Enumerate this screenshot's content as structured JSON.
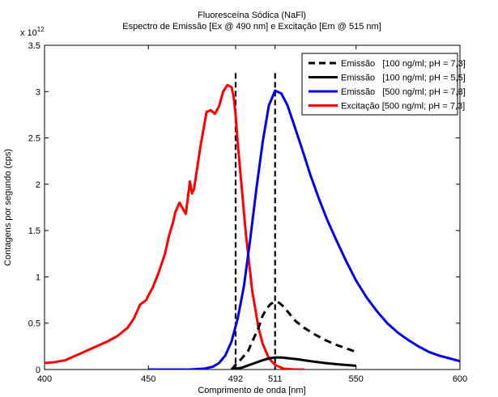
{
  "chart_data": {
    "type": "line",
    "title": "Fluoresceína Sódica (NaFl)",
    "subtitle": "Espectro de Emissão [Ex @ 490 nm] e Excitação [Em @ 515 nm]",
    "xlabel": "Comprimento de onda [nm]",
    "ylabel": "Contagens por segundo (cps)",
    "y_multiplier_label": "x 10",
    "y_multiplier_exponent": "12",
    "xlim": [
      400,
      600
    ],
    "ylim": [
      0,
      3.5
    ],
    "x_ticks": [
      400,
      450,
      492,
      511,
      550,
      600
    ],
    "x_tick_labels": [
      "400",
      "450",
      "492",
      "511",
      "550",
      "600"
    ],
    "y_ticks": [
      0,
      0.5,
      1,
      1.5,
      2,
      2.5,
      3,
      3.5
    ],
    "y_tick_labels": [
      "0",
      "0.5",
      "1",
      "1.5",
      "2",
      "2.5",
      "3",
      "3.5"
    ],
    "grid": false,
    "legend_position": "top-right",
    "reference_lines": [
      {
        "x": 492,
        "style": "dashed",
        "color": "#000000"
      },
      {
        "x": 511,
        "style": "dashed",
        "color": "#000000"
      }
    ],
    "series": [
      {
        "name": "Emissão   [100 ng/ml; pH = 7,3]",
        "color": "#000000",
        "style": "dashed",
        "x": [
          490,
          492,
          495,
          498,
          500,
          503,
          505,
          507,
          509,
          511,
          513,
          515,
          518,
          521,
          525,
          530,
          535,
          540,
          545,
          550
        ],
        "y": [
          0.0,
          0.05,
          0.12,
          0.2,
          0.3,
          0.45,
          0.58,
          0.66,
          0.71,
          0.73,
          0.72,
          0.68,
          0.6,
          0.52,
          0.45,
          0.38,
          0.32,
          0.27,
          0.23,
          0.19
        ]
      },
      {
        "name": "Emissão   [100 ng/ml; pH = 5,5]",
        "color": "#000000",
        "style": "solid",
        "x": [
          490,
          495,
          500,
          505,
          508,
          511,
          514,
          518,
          522,
          528,
          535,
          542,
          550
        ],
        "y": [
          0.0,
          0.02,
          0.06,
          0.1,
          0.12,
          0.13,
          0.13,
          0.12,
          0.11,
          0.09,
          0.07,
          0.055,
          0.04
        ]
      },
      {
        "name": "Emissão   [500 ng/ml; pH = 7,3]",
        "color": "#0000ee",
        "style": "solid",
        "x": [
          450,
          470,
          477,
          481,
          484,
          487,
          490,
          493,
          496,
          499,
          502,
          505,
          508,
          511,
          514,
          517,
          520,
          524,
          528,
          532,
          536,
          540,
          545,
          550,
          555,
          560,
          565,
          570,
          575,
          580,
          585,
          590,
          595,
          600
        ],
        "y": [
          0.0,
          0.0,
          0.01,
          0.03,
          0.07,
          0.15,
          0.3,
          0.55,
          0.9,
          1.4,
          1.95,
          2.45,
          2.85,
          3.01,
          2.98,
          2.85,
          2.65,
          2.38,
          2.1,
          1.85,
          1.62,
          1.42,
          1.18,
          0.96,
          0.78,
          0.63,
          0.5,
          0.4,
          0.32,
          0.25,
          0.19,
          0.15,
          0.12,
          0.09
        ]
      },
      {
        "name": "Excitação [500 ng/ml; pH = 7,3]",
        "color": "#ff0000",
        "style": "solid",
        "x": [
          400,
          405,
          410,
          415,
          420,
          425,
          430,
          435,
          440,
          443,
          446,
          449,
          450,
          452,
          455,
          458,
          460,
          462,
          463,
          465,
          467,
          468,
          469,
          470,
          471,
          472,
          473,
          475,
          477,
          478,
          480,
          482,
          484,
          486,
          488,
          490,
          491,
          492,
          493,
          495,
          497,
          500,
          503,
          505,
          508,
          511,
          515,
          520,
          525
        ],
        "y": [
          0.07,
          0.08,
          0.1,
          0.15,
          0.2,
          0.25,
          0.3,
          0.36,
          0.45,
          0.55,
          0.7,
          0.75,
          0.8,
          0.88,
          1.05,
          1.25,
          1.45,
          1.6,
          1.7,
          1.8,
          1.72,
          1.68,
          1.85,
          2.03,
          1.9,
          1.95,
          2.1,
          2.4,
          2.65,
          2.78,
          2.8,
          2.76,
          2.84,
          3.0,
          3.07,
          3.05,
          2.95,
          2.75,
          2.45,
          1.95,
          1.45,
          0.85,
          0.45,
          0.28,
          0.12,
          0.05,
          0.01,
          0.0,
          0.0
        ]
      }
    ]
  }
}
